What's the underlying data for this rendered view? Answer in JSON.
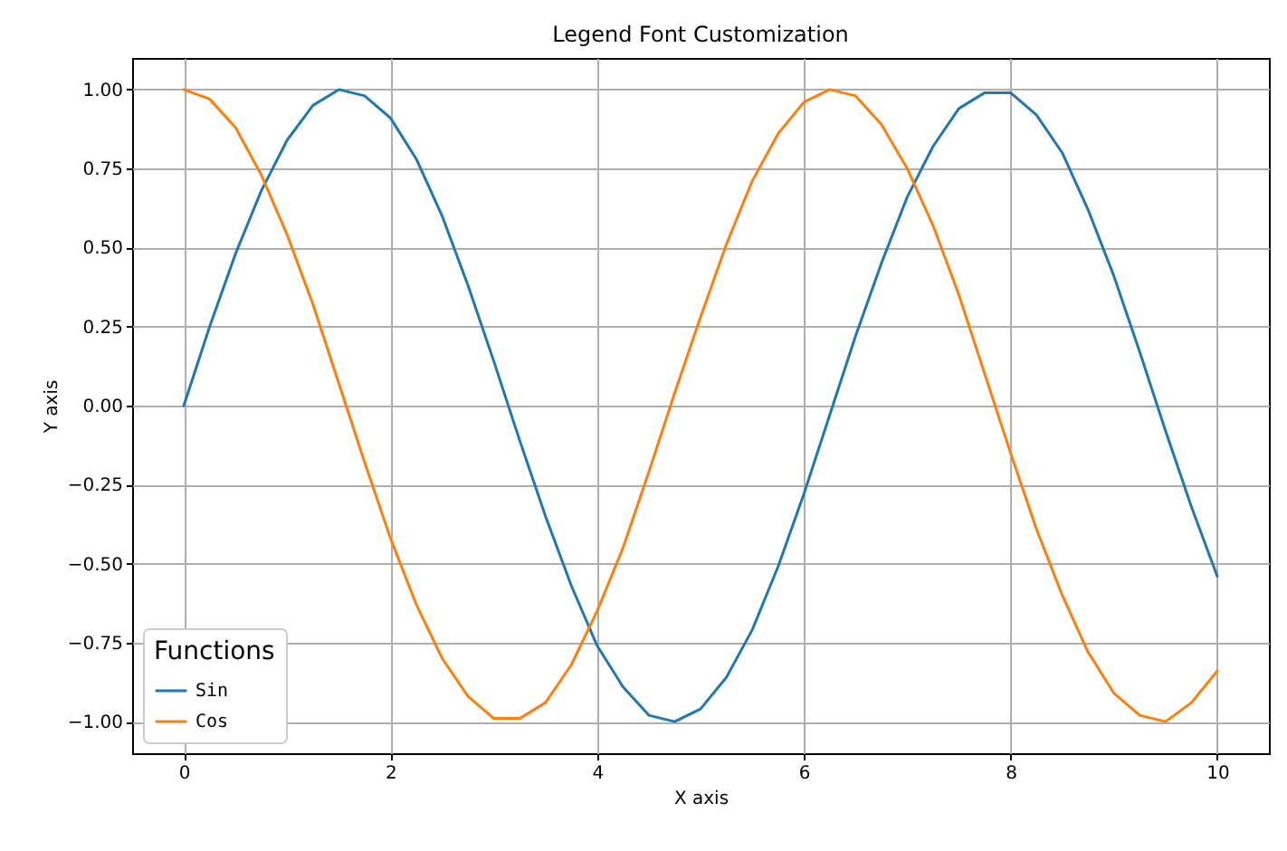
{
  "chart_data": {
    "type": "line",
    "title": "Legend Font Customization",
    "xlabel": "X axis",
    "ylabel": "Y axis",
    "legend_title": "Functions",
    "x": [
      0,
      0.25,
      0.5,
      0.75,
      1,
      1.25,
      1.5,
      1.75,
      2,
      2.25,
      2.5,
      2.75,
      3,
      3.25,
      3.5,
      3.75,
      4,
      4.25,
      4.5,
      4.75,
      5,
      5.25,
      5.5,
      5.75,
      6,
      6.25,
      6.5,
      6.75,
      7,
      7.25,
      7.5,
      7.75,
      8,
      8.25,
      8.5,
      8.75,
      9,
      9.25,
      9.5,
      9.75,
      10
    ],
    "series": [
      {
        "name": "Sin",
        "color": "#1f77b4",
        "values": [
          0,
          0.25,
          0.48,
          0.68,
          0.84,
          0.95,
          1.0,
          0.98,
          0.91,
          0.78,
          0.6,
          0.38,
          0.14,
          -0.11,
          -0.35,
          -0.57,
          -0.76,
          -0.89,
          -0.98,
          -1.0,
          -0.96,
          -0.86,
          -0.71,
          -0.51,
          -0.28,
          -0.03,
          0.22,
          0.45,
          0.66,
          0.82,
          0.94,
          0.99,
          0.99,
          0.92,
          0.8,
          0.62,
          0.41,
          0.17,
          -0.08,
          -0.32,
          -0.54
        ]
      },
      {
        "name": "Cos",
        "color": "#ff7f0e",
        "values": [
          1,
          0.97,
          0.88,
          0.73,
          0.54,
          0.32,
          0.07,
          -0.18,
          -0.42,
          -0.63,
          -0.8,
          -0.92,
          -0.99,
          -0.99,
          -0.94,
          -0.82,
          -0.65,
          -0.45,
          -0.21,
          0.04,
          0.28,
          0.51,
          0.71,
          0.86,
          0.96,
          1.0,
          0.98,
          0.89,
          0.75,
          0.57,
          0.35,
          0.1,
          -0.15,
          -0.39,
          -0.6,
          -0.78,
          -0.91,
          -0.98,
          -1.0,
          -0.94,
          -0.84
        ]
      }
    ],
    "xlim": [
      -0.5,
      10.5
    ],
    "xticks": [
      0,
      2,
      4,
      6,
      8,
      10
    ],
    "ylim": [
      -1.1,
      1.1
    ],
    "yticks": [
      {
        "value": -1,
        "label": "−1.00"
      },
      {
        "value": -0.75,
        "label": "−0.75"
      },
      {
        "value": -0.5,
        "label": "−0.50"
      },
      {
        "value": -0.25,
        "label": "−0.25"
      },
      {
        "value": 0,
        "label": "0.00"
      },
      {
        "value": 0.25,
        "label": "0.25"
      },
      {
        "value": 0.5,
        "label": "0.50"
      },
      {
        "value": 0.75,
        "label": "0.75"
      },
      {
        "value": 1,
        "label": "1.00"
      }
    ],
    "grid": true,
    "legend": "bottom left",
    "marker": "none",
    "line_style": "solid"
  }
}
